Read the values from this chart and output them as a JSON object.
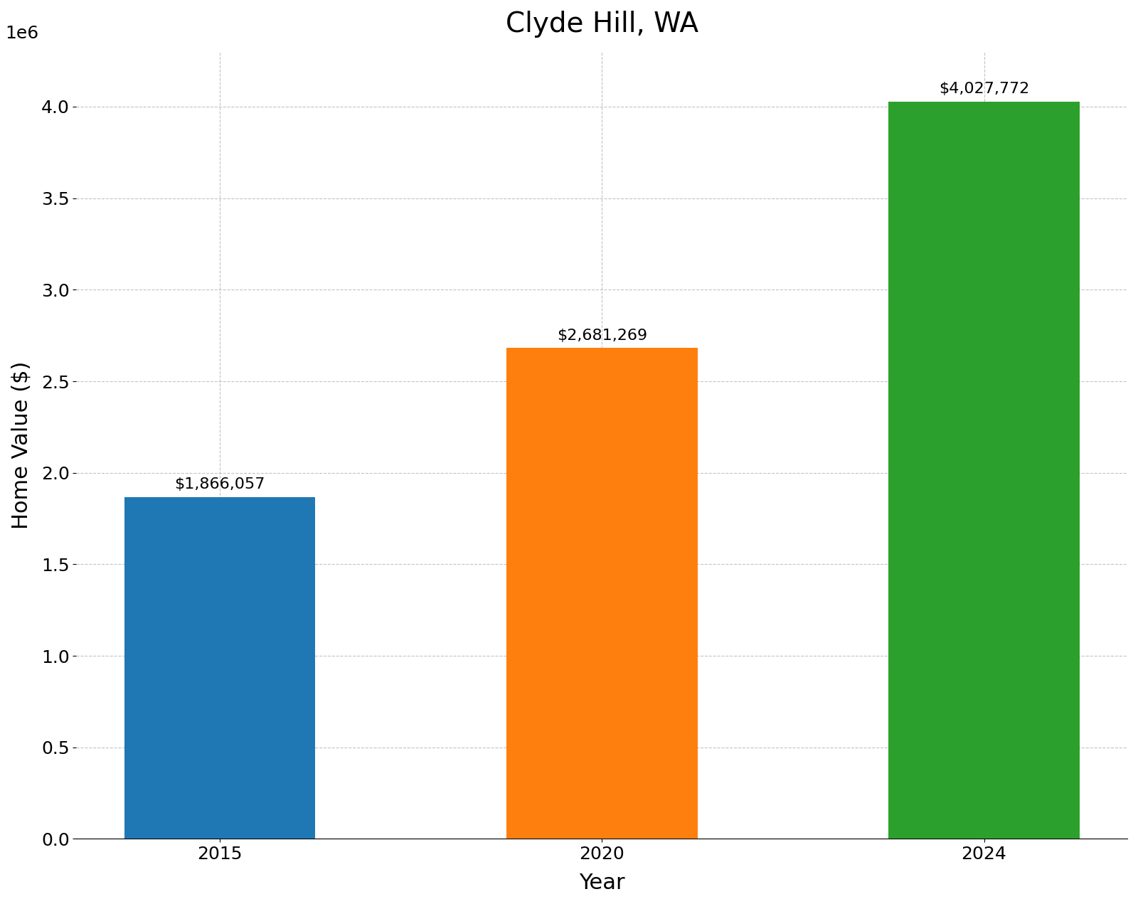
{
  "title": "Clyde Hill, WA",
  "xlabel": "Year",
  "ylabel": "Home Value ($)",
  "categories": [
    "2015",
    "2020",
    "2024"
  ],
  "values": [
    1866057,
    2681269,
    4027772
  ],
  "bar_colors": [
    "#1f77b4",
    "#ff7f0e",
    "#2ca02c"
  ],
  "labels": [
    "$1,866,057",
    "$2,681,269",
    "$4,027,772"
  ],
  "ylim": [
    0,
    4300000
  ],
  "yticks": [
    0,
    500000,
    1000000,
    1500000,
    2000000,
    2500000,
    3000000,
    3500000,
    4000000
  ],
  "title_fontsize": 28,
  "axis_label_fontsize": 22,
  "tick_fontsize": 18,
  "annotation_fontsize": 16,
  "bar_width": 0.5,
  "grid_color": "#aaaaaa",
  "grid_linestyle": "--",
  "grid_alpha": 0.7,
  "background_color": "#ffffff"
}
